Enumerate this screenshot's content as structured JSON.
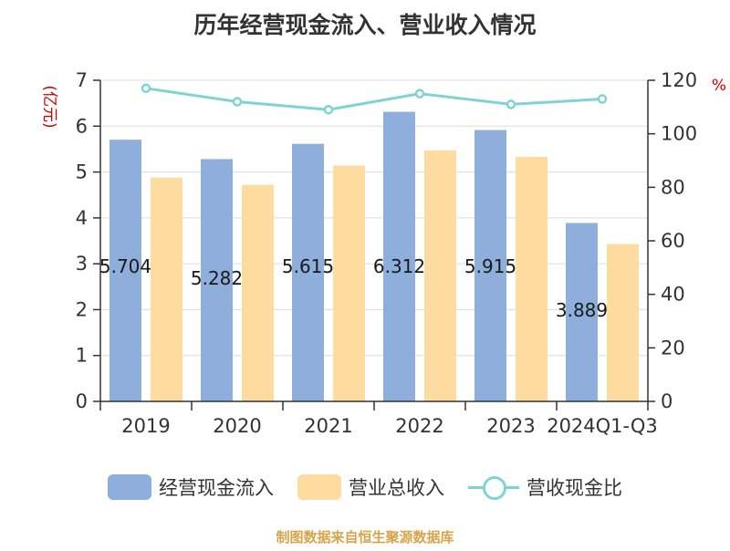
{
  "chart_data": {
    "type": "bar",
    "title": "历年经营现金流入、营业收入情况",
    "categories": [
      "2019",
      "2020",
      "2021",
      "2022",
      "2023",
      "2024Q1-Q3"
    ],
    "series": [
      {
        "name": "经营现金流入",
        "type": "bar",
        "axis": "left",
        "values": [
          5.704,
          5.282,
          5.615,
          6.312,
          5.915,
          3.889
        ],
        "labels": [
          "5.704",
          "5.282",
          "5.615",
          "6.312",
          "5.915",
          "3.889"
        ]
      },
      {
        "name": "营业总收入",
        "type": "bar",
        "axis": "left",
        "values": [
          4.88,
          4.72,
          5.14,
          5.47,
          5.33,
          3.43
        ]
      },
      {
        "name": "营收现金比",
        "type": "line",
        "axis": "right",
        "values": [
          117,
          112,
          109,
          115,
          111,
          113
        ]
      }
    ],
    "ylabel": "(亿元)",
    "y2label": "%",
    "ylim": [
      0,
      7
    ],
    "y2lim": [
      0,
      120
    ],
    "yticks": [
      "0",
      "1",
      "2",
      "3",
      "4",
      "5",
      "6",
      "7"
    ],
    "y2ticks": [
      "0",
      "20",
      "40",
      "60",
      "80",
      "100",
      "120"
    ],
    "grid": true,
    "legend_position": "bottom",
    "colors": {
      "cash_inflow": "#8eaedb",
      "revenue": "#fedb9f",
      "ratio_line": "#7fd3d3",
      "axis_label_left": "#cc0000",
      "axis_label_right": "#cc0000"
    }
  },
  "legend": {
    "items": [
      {
        "label": "经营现金流入",
        "icon": "blue-bar-swatch"
      },
      {
        "label": "营业总收入",
        "icon": "yellow-bar-swatch"
      },
      {
        "label": "营收现金比",
        "icon": "line-marker-swatch"
      }
    ]
  },
  "source_note": "制图数据来自恒生聚源数据库"
}
